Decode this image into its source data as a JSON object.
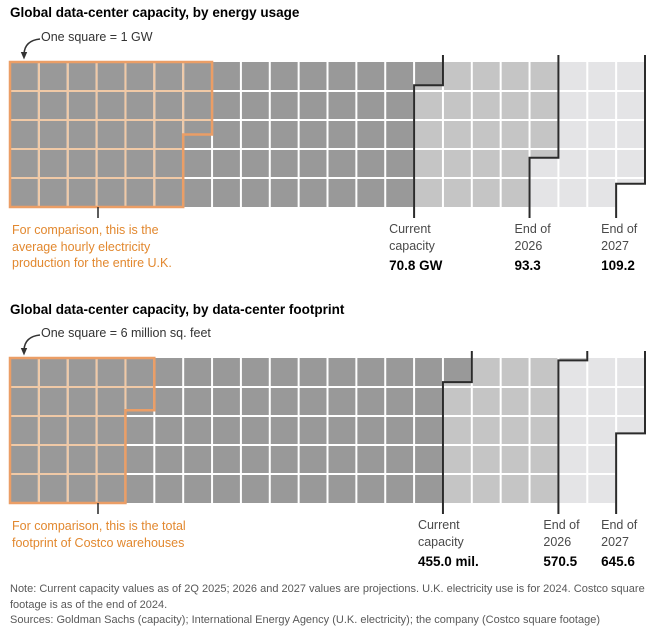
{
  "chart_data": {
    "type": "waffle",
    "charts": [
      {
        "title": "Global data-center capacity, by energy usage",
        "square_note": "One square = 1 GW",
        "unit_per_square": 1,
        "grid": {
          "rows": 5,
          "cols": 22
        },
        "series": [
          {
            "label": "Current\ncapacity",
            "value": 70.8,
            "value_label": "70.8 GW",
            "color": "#999999"
          },
          {
            "label": "End of\n2026",
            "value": 93.3,
            "value_label": "93.3",
            "color": "#c5c5c5"
          },
          {
            "label": "End of\n2027",
            "value": 109.2,
            "value_label": "109.2",
            "color": "#e4e4e6"
          }
        ],
        "comparison": {
          "value": 32.5,
          "caption": "For comparison, this is the\naverage hourly electricity\nproduction for the entire U.K."
        }
      },
      {
        "title": "Global data-center capacity, by data-center footprint",
        "square_note": "One square = 6 million sq. feet",
        "unit_per_square": 6,
        "grid": {
          "rows": 5,
          "cols": 22
        },
        "series": [
          {
            "label": "Current\ncapacity",
            "value": 455.0,
            "value_label": "455.0 mil.",
            "color": "#999999"
          },
          {
            "label": "End of\n2026",
            "value": 570.5,
            "value_label": "570.5",
            "color": "#c5c5c5"
          },
          {
            "label": "End of\n2027",
            "value": 645.6,
            "value_label": "645.6",
            "color": "#e4e4e6"
          }
        ],
        "comparison": {
          "value": 130.8,
          "caption": "For comparison, this is the total\nfootprint of Costco warehouses"
        }
      }
    ],
    "colors": {
      "dark": "#999999",
      "medium": "#c5c5c5",
      "light": "#e4e4e6",
      "grid_line": "#ffffff",
      "boundary_line": "#2b2b2b",
      "comparison_outline": "#eb9e66",
      "comparison_grid": "#f0c9a6",
      "comparison_text": "#e2882f"
    }
  },
  "footer": {
    "note": "Note: Current capacity values as of 2Q 2025; 2026 and 2027 values are projections. U.K. electricity use is for 2024. Costco square footage is as of the end of 2024.",
    "sources": "Sources: Goldman Sachs (capacity); International Energy Agency (U.K. electricity); the company (Costco square footage)"
  }
}
